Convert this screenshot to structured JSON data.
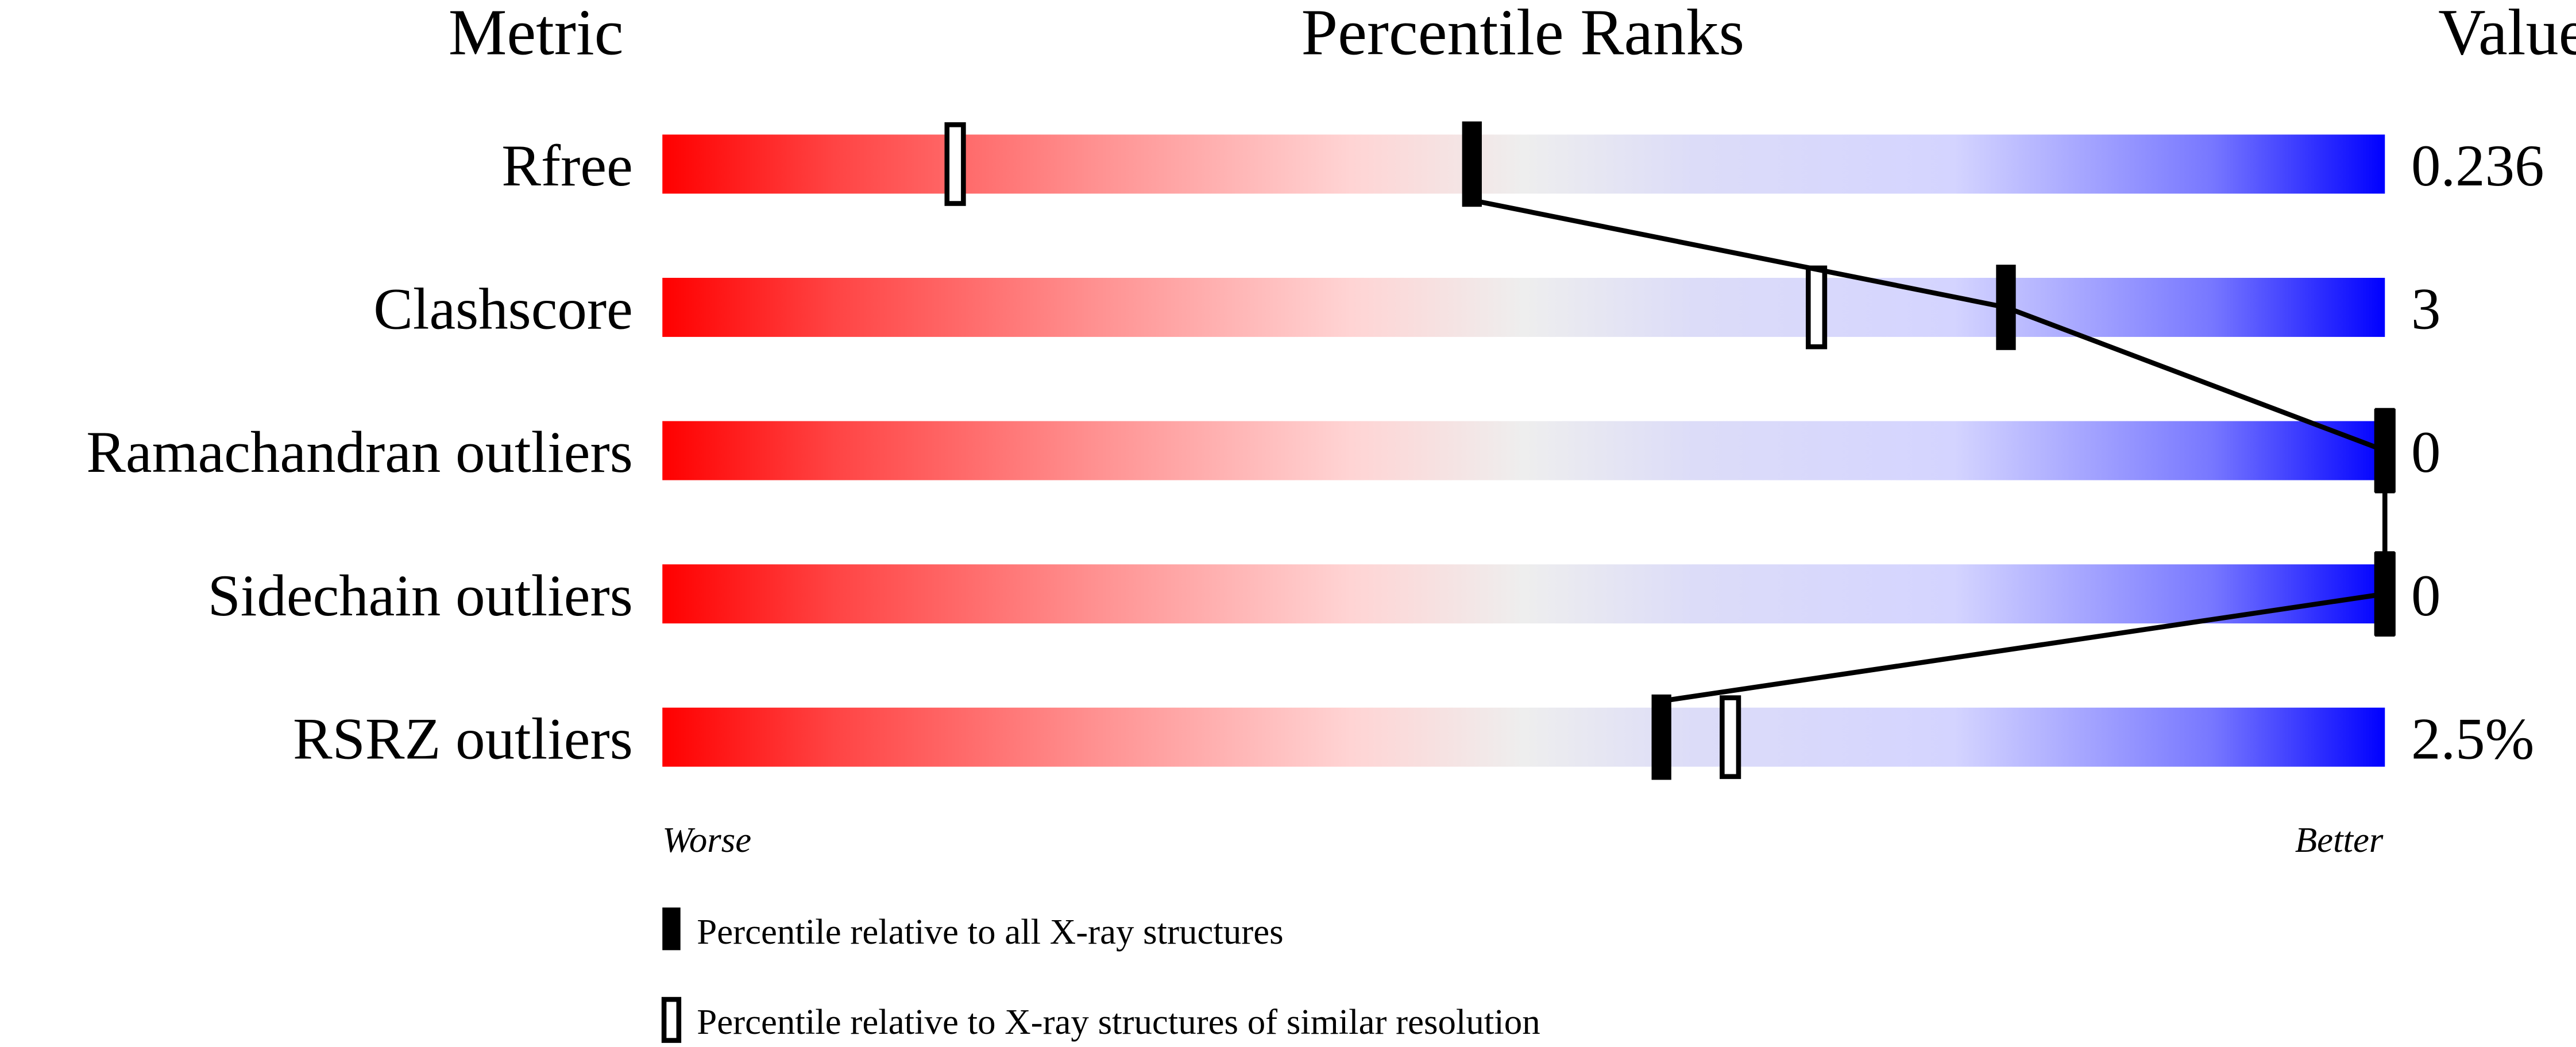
{
  "chart_data": {
    "type": "percentile-slider",
    "headers": {
      "metric": "Metric",
      "ranks": "Percentile Ranks",
      "value": "Value"
    },
    "xlim": [
      0,
      100
    ],
    "rows": [
      {
        "metric": "Rfree",
        "value": "0.236",
        "all_xray_percentile": 47,
        "similar_resolution_percentile": 17
      },
      {
        "metric": "Clashscore",
        "value": "3",
        "all_xray_percentile": 78,
        "similar_resolution_percentile": 67
      },
      {
        "metric": "Ramachandran outliers",
        "value": "0",
        "all_xray_percentile": 100,
        "similar_resolution_percentile": 100
      },
      {
        "metric": "Sidechain outliers",
        "value": "0",
        "all_xray_percentile": 100,
        "similar_resolution_percentile": 100
      },
      {
        "metric": "RSRZ outliers",
        "value": "2.5%",
        "all_xray_percentile": 58,
        "similar_resolution_percentile": 62
      }
    ],
    "axis_left_label": "Worse",
    "axis_right_label": "Better",
    "legend": {
      "filled": "Percentile relative to all X-ray structures",
      "open": "Percentile relative to X-ray structures of similar resolution"
    },
    "colors": {
      "worse": "#ff0000",
      "middle": "#eeeeee",
      "better": "#0000ff"
    }
  }
}
